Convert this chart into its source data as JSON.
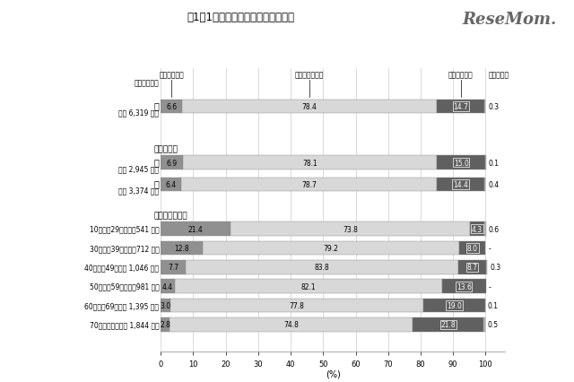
{
  "title": "図1－1　去年と比べた生活の向上感",
  "logo_text": "ReseMom.",
  "col_headers": [
    "向上している",
    "同じようなもの",
    "低下している",
    "わからない"
  ],
  "sample_header": "《該当者数》",
  "rows": [
    {
      "group": "total",
      "left1": "総",
      "left2": "数（ 6,319 人）",
      "values": [
        6.6,
        78.4,
        14.7,
        0.3
      ],
      "wakaran_show": "0.3"
    },
    {
      "group": "gender_header",
      "left1": "（　性　）",
      "left2": "",
      "values": null,
      "wakaran_show": ""
    },
    {
      "group": "gender",
      "left1": "男",
      "left2": "性（ 2,945 人）",
      "values": [
        6.9,
        78.1,
        15.0,
        0.1
      ],
      "wakaran_show": "0.1"
    },
    {
      "group": "gender",
      "left1": "女",
      "left2": "性（ 3,374 人）",
      "values": [
        6.4,
        78.7,
        14.4,
        0.4
      ],
      "wakaran_show": "0.4"
    },
    {
      "group": "age_header",
      "left1": "（　年　齢　）",
      "left2": "",
      "values": null,
      "wakaran_show": ""
    },
    {
      "group": "age",
      "left1": "10　～　29　歳（　541 人）",
      "left2": "",
      "values": [
        21.4,
        73.8,
        4.3,
        0.6
      ],
      "wakaran_show": "0.6"
    },
    {
      "group": "age",
      "left1": "30　～　39　歳（　712 人）",
      "left2": "",
      "values": [
        12.8,
        79.2,
        8.0,
        0.0
      ],
      "wakaran_show": "-"
    },
    {
      "group": "age",
      "left1": "40　～　49　歳（ 1,046 人）",
      "left2": "",
      "values": [
        7.7,
        83.8,
        8.7,
        0.3
      ],
      "wakaran_show": "0.3"
    },
    {
      "group": "age",
      "left1": "50　～　59　歳（　981 人）",
      "left2": "",
      "values": [
        4.4,
        82.1,
        13.6,
        0.0
      ],
      "wakaran_show": "-"
    },
    {
      "group": "age",
      "left1": "60　～　69　歳（ 1,395 人）",
      "left2": "",
      "values": [
        3.0,
        77.8,
        19.0,
        0.1
      ],
      "wakaran_show": "0.1"
    },
    {
      "group": "age",
      "left1": "70　歳　以　上（ 1,844 人）",
      "left2": "",
      "values": [
        2.8,
        74.8,
        21.8,
        0.5
      ],
      "wakaran_show": "0.5"
    }
  ],
  "colors": [
    "#909090",
    "#d8d8d8",
    "#606060",
    "#b8b8b8"
  ],
  "bar_edgecolor": "#888888",
  "bar_height": 0.55,
  "xlim": [
    0,
    100
  ],
  "xticks": [
    0,
    10,
    20,
    30,
    40,
    50,
    60,
    70,
    80,
    90,
    100
  ],
  "xlabel": "(%)"
}
